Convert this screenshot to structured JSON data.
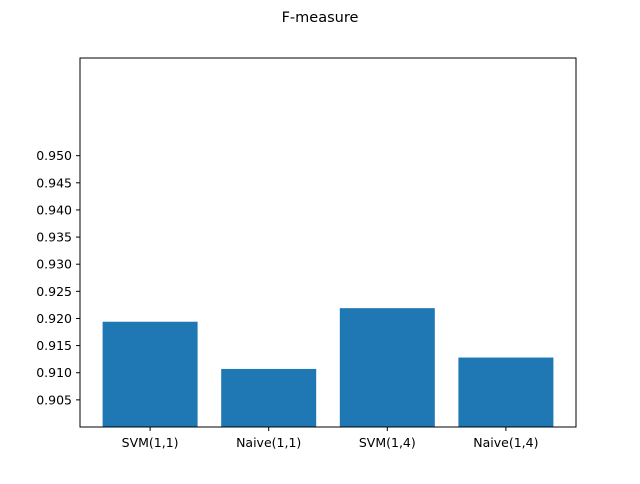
{
  "chart_data": {
    "type": "bar",
    "title": "F-measure",
    "xlabel": "",
    "ylabel": "",
    "categories": [
      "SVM(1,1)",
      "Naive(1,1)",
      "SVM(1,4)",
      "Naive(1,4)"
    ],
    "values": [
      0.9194,
      0.9107,
      0.9219,
      0.9128
    ],
    "ylim": [
      0.9,
      0.968
    ],
    "yticks": [
      "0.905",
      "0.910",
      "0.915",
      "0.920",
      "0.925",
      "0.930",
      "0.935",
      "0.940",
      "0.945",
      "0.950"
    ],
    "grid": false,
    "legend": false,
    "bar_color": "#1f77b4"
  }
}
